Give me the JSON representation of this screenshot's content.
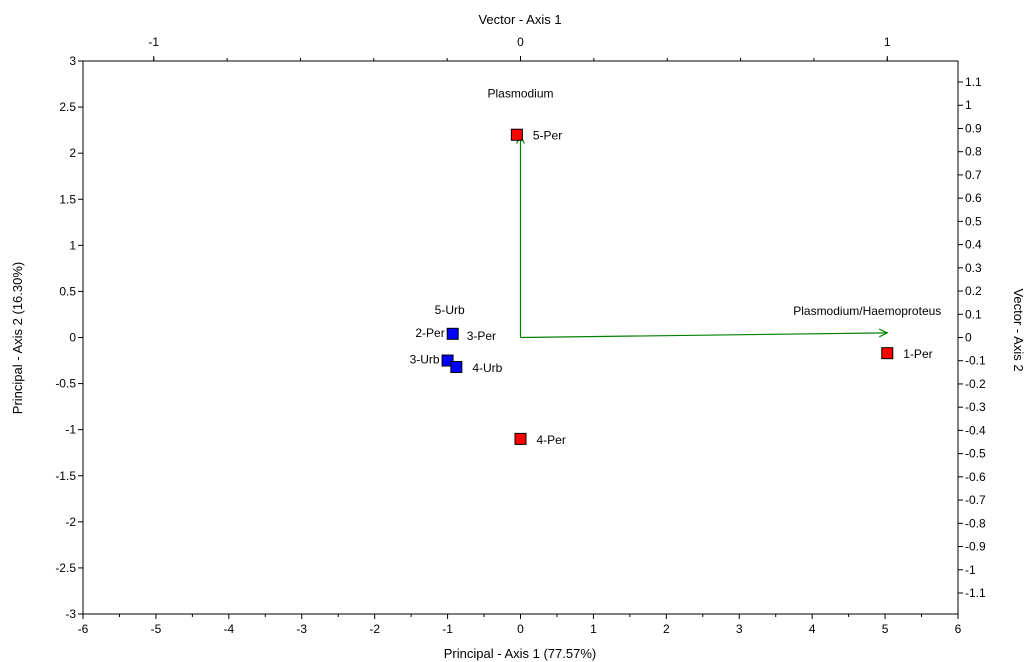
{
  "chart_data": {
    "type": "scatter",
    "title": "",
    "xlabel": "Principal - Axis 1 (77.57%)",
    "ylabel": "Principal - Axis 2 (16.30%)",
    "x2label": "Vector - Axis 1",
    "y2label": "Vector - Axis 2",
    "xlim": [
      -6,
      6
    ],
    "ylim": [
      -3,
      3
    ],
    "x2lim": [
      -1,
      1
    ],
    "y2lim": [
      -1.1,
      1.1
    ],
    "x_ticks": [
      "-6",
      "-5",
      "-4",
      "-3",
      "-2",
      "-1",
      "0",
      "1",
      "2",
      "3",
      "4",
      "5",
      "6"
    ],
    "y_ticks": [
      "-3",
      "-2.5",
      "-2",
      "-1.5",
      "-1",
      "-0.5",
      "0",
      "0.5",
      "1",
      "1.5",
      "2",
      "2.5",
      "3"
    ],
    "x2_ticks": [
      "-1",
      "0",
      "1"
    ],
    "y2_ticks": [
      "-1.1",
      "-1",
      "-0.9",
      "-0.8",
      "-0.7",
      "-0.6",
      "-0.5",
      "-0.4",
      "-0.3",
      "-0.2",
      "-0.1",
      "0",
      "0.1",
      "0.2",
      "0.3",
      "0.4",
      "0.5",
      "0.6",
      "0.7",
      "0.8",
      "0.9",
      "1",
      "1.1"
    ],
    "grid": false,
    "series": [
      {
        "color": "#ff0000",
        "points": [
          {
            "x": -0.05,
            "y": 2.2,
            "label": "5-Per"
          },
          {
            "x": 5.03,
            "y": -0.17,
            "label": "1-Per"
          },
          {
            "x": 0.0,
            "y": -1.1,
            "label": "4-Per"
          }
        ]
      },
      {
        "color": "#0000ff",
        "points": [
          {
            "x": -0.93,
            "y": 0.04,
            "label": "5-Urb"
          },
          {
            "x": -1.0,
            "y": -0.25,
            "label": "3-Urb"
          },
          {
            "x": -0.88,
            "y": -0.32,
            "label": "4-Urb"
          }
        ]
      }
    ],
    "point_labels": [
      {
        "x": -0.05,
        "y": 2.2,
        "text": "5-Per",
        "anchor": "right"
      },
      {
        "x": 5.03,
        "y": -0.17,
        "text": "1-Per",
        "anchor": "right"
      },
      {
        "x": 0.0,
        "y": -1.1,
        "text": "4-Per",
        "anchor": "right"
      },
      {
        "x": -0.93,
        "y": 0.04,
        "text": "5-Urb",
        "anchor": "above"
      },
      {
        "x": -0.93,
        "y": 0.04,
        "text": "2-Per",
        "anchor": "left"
      },
      {
        "x": -0.93,
        "y": 0.04,
        "text": "3-Per",
        "anchor": "lowright"
      },
      {
        "x": -1.0,
        "y": -0.25,
        "text": "3-Urb",
        "anchor": "left"
      },
      {
        "x": -0.88,
        "y": -0.32,
        "text": "4-Urb",
        "anchor": "right"
      }
    ],
    "vectors": [
      {
        "name": "Plasmodium",
        "x": 0.0,
        "y": 0.87,
        "color": "#008000"
      },
      {
        "name": "Plasmodium/Haemoproteus",
        "x": 1.0,
        "y": 0.02,
        "color": "#008000"
      }
    ]
  }
}
